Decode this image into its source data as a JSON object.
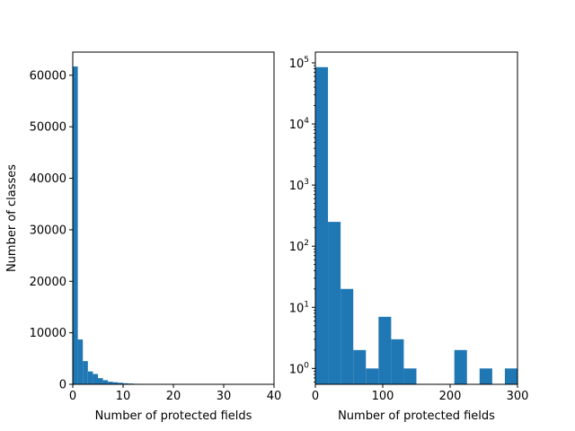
{
  "chart_data": [
    {
      "type": "bar",
      "subtype": "histogram",
      "xlabel": "Number of protected fields",
      "ylabel": "Number of classes",
      "xlim": [
        0,
        40
      ],
      "ylim": [
        0,
        64500
      ],
      "yscale": "linear",
      "bar_color": "#1f77b4",
      "grid": false,
      "x_ticks": [
        0,
        10,
        20,
        30,
        40
      ],
      "y_ticks": [
        0,
        10000,
        20000,
        30000,
        40000,
        50000,
        60000
      ],
      "x_tick_labels": [
        "0",
        "10",
        "20",
        "30",
        "40"
      ],
      "y_tick_labels": [
        "0",
        "10000",
        "20000",
        "30000",
        "40000",
        "50000",
        "60000"
      ],
      "bins": [
        {
          "x0": 0,
          "x1": 1,
          "value": 61700
        },
        {
          "x0": 1,
          "x1": 2,
          "value": 8700
        },
        {
          "x0": 2,
          "x1": 3,
          "value": 4500
        },
        {
          "x0": 3,
          "x1": 4,
          "value": 2500
        },
        {
          "x0": 4,
          "x1": 5,
          "value": 2000
        },
        {
          "x0": 5,
          "x1": 6,
          "value": 1200
        },
        {
          "x0": 6,
          "x1": 7,
          "value": 800
        },
        {
          "x0": 7,
          "x1": 8,
          "value": 500
        },
        {
          "x0": 8,
          "x1": 9,
          "value": 400
        },
        {
          "x0": 9,
          "x1": 10,
          "value": 300
        },
        {
          "x0": 10,
          "x1": 11,
          "value": 200
        },
        {
          "x0": 11,
          "x1": 12,
          "value": 150
        },
        {
          "x0": 12,
          "x1": 13,
          "value": 100
        },
        {
          "x0": 13,
          "x1": 14,
          "value": 80
        }
      ]
    },
    {
      "type": "bar",
      "subtype": "histogram",
      "xlabel": "Number of protected fields",
      "ylabel": "",
      "xlim": [
        0,
        300
      ],
      "ylim": [
        0.55,
        150000
      ],
      "yscale": "log",
      "bar_color": "#1f77b4",
      "grid": false,
      "x_ticks": [
        0,
        100,
        200,
        300
      ],
      "x_tick_labels": [
        "0",
        "100",
        "200",
        "300"
      ],
      "y_ticks": [
        1,
        10,
        100,
        1000,
        10000,
        100000
      ],
      "y_tick_exponents": [
        "0",
        "1",
        "2",
        "3",
        "4",
        "5"
      ],
      "y_tick_base": "10",
      "bins": [
        {
          "x0": 0,
          "x1": 18.75,
          "value": 85000
        },
        {
          "x0": 18.75,
          "x1": 37.5,
          "value": 250
        },
        {
          "x0": 37.5,
          "x1": 56.25,
          "value": 20
        },
        {
          "x0": 56.25,
          "x1": 75,
          "value": 2
        },
        {
          "x0": 75,
          "x1": 93.75,
          "value": 1
        },
        {
          "x0": 93.75,
          "x1": 112.5,
          "value": 7
        },
        {
          "x0": 112.5,
          "x1": 131.25,
          "value": 3
        },
        {
          "x0": 131.25,
          "x1": 150,
          "value": 1
        },
        {
          "x0": 150,
          "x1": 168.75,
          "value": 0
        },
        {
          "x0": 168.75,
          "x1": 187.5,
          "value": 0
        },
        {
          "x0": 187.5,
          "x1": 206.25,
          "value": 0
        },
        {
          "x0": 206.25,
          "x1": 225,
          "value": 2
        },
        {
          "x0": 225,
          "x1": 243.75,
          "value": 0
        },
        {
          "x0": 243.75,
          "x1": 262.5,
          "value": 1
        },
        {
          "x0": 262.5,
          "x1": 281.25,
          "value": 0
        },
        {
          "x0": 281.25,
          "x1": 300,
          "value": 1
        }
      ]
    }
  ]
}
